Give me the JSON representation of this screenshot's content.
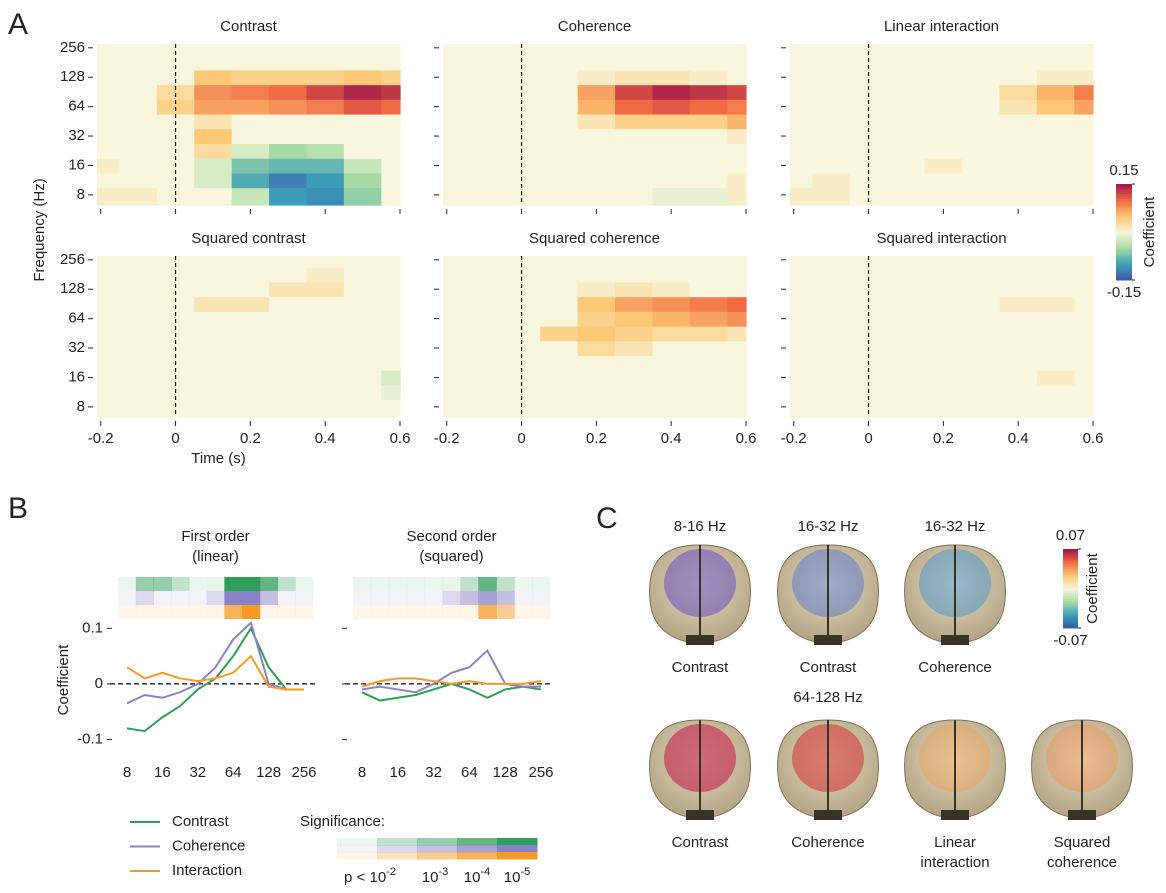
{
  "panel_letters": [
    "A",
    "B",
    "C"
  ],
  "chart_data": [
    {
      "type": "heatmap",
      "title": "Contrast",
      "x": [
        -0.2,
        -0.1,
        0,
        0.1,
        0.2,
        0.3,
        0.4,
        0.5,
        0.6
      ],
      "y": [
        8,
        11.3,
        16,
        22.6,
        32,
        45.3,
        64,
        90.5,
        128,
        181,
        256
      ],
      "xlim": [
        -0.21,
        0.6
      ],
      "ylim": [
        6.3,
        280
      ],
      "ylog": true,
      "xticks": [
        -0.2,
        0,
        0.2,
        0.4,
        0.6
      ],
      "yticks": [
        8,
        16,
        32,
        64,
        128,
        256
      ],
      "xtick_labels": false,
      "ytick_labels": true,
      "z": [
        [
          0.01,
          0.01,
          0,
          0,
          -0.03,
          -0.1,
          -0.11,
          -0.06,
          0
        ],
        [
          0,
          0,
          0,
          -0.02,
          -0.09,
          -0.12,
          -0.1,
          -0.05,
          0
        ],
        [
          0.01,
          0,
          0,
          -0.02,
          -0.07,
          -0.08,
          -0.08,
          -0.03,
          0
        ],
        [
          0,
          0,
          0,
          0.03,
          -0.02,
          -0.05,
          -0.04,
          0,
          0
        ],
        [
          0,
          0,
          0,
          0.05,
          0,
          0,
          0,
          0,
          0
        ],
        [
          0,
          0,
          0,
          0.02,
          0,
          0,
          0,
          0,
          0
        ],
        [
          0,
          0,
          0.04,
          0.07,
          0.07,
          0.08,
          0.09,
          0.11,
          0.1
        ],
        [
          0,
          0,
          0.03,
          0.08,
          0.09,
          0.1,
          0.12,
          0.14,
          0.13
        ],
        [
          0,
          0,
          0,
          0.05,
          0.04,
          0.04,
          0.04,
          0.05,
          0.04
        ],
        [
          0,
          0,
          0,
          0,
          0,
          0,
          0,
          0,
          0
        ],
        [
          0,
          0,
          0,
          0,
          0,
          0,
          0,
          0,
          0
        ]
      ]
    },
    {
      "type": "heatmap",
      "title": "Coherence",
      "x": [
        -0.2,
        -0.1,
        0,
        0.1,
        0.2,
        0.3,
        0.4,
        0.5,
        0.6
      ],
      "y": [
        8,
        11.3,
        16,
        22.6,
        32,
        45.3,
        64,
        90.5,
        128,
        181,
        256
      ],
      "xlim": [
        -0.21,
        0.6
      ],
      "ylim": [
        6.3,
        280
      ],
      "ylog": true,
      "xticks": [
        -0.2,
        0,
        0.2,
        0.4,
        0.6
      ],
      "yticks": [
        8,
        16,
        32,
        64,
        128,
        256
      ],
      "xtick_labels": false,
      "ytick_labels": false,
      "z": [
        [
          0,
          0,
          0,
          0,
          0,
          0,
          -0.01,
          -0.01,
          0.01
        ],
        [
          0,
          0,
          0,
          0,
          0,
          0,
          0,
          0,
          0.01
        ],
        [
          0,
          0,
          0,
          0,
          0,
          0,
          0,
          0,
          0
        ],
        [
          0,
          0,
          0,
          0,
          0,
          0,
          0,
          0,
          0
        ],
        [
          0,
          0,
          0,
          0,
          0,
          0,
          0,
          0,
          0.01
        ],
        [
          0,
          0,
          0,
          0,
          0.02,
          0.04,
          0.04,
          0.04,
          0.06
        ],
        [
          0,
          0,
          0,
          0,
          0.06,
          0.1,
          0.11,
          0.1,
          0.09
        ],
        [
          0,
          0,
          0,
          0,
          0.07,
          0.12,
          0.14,
          0.13,
          0.12
        ],
        [
          0,
          0,
          0,
          0,
          0.01,
          0.02,
          0.02,
          0.01,
          0
        ],
        [
          0,
          0,
          0,
          0,
          0,
          0,
          0,
          0,
          0
        ],
        [
          0,
          0,
          0,
          0,
          0,
          0,
          0,
          0,
          0
        ]
      ]
    },
    {
      "type": "heatmap",
      "title": "Linear interaction",
      "x": [
        -0.2,
        -0.1,
        0,
        0.1,
        0.2,
        0.3,
        0.4,
        0.5,
        0.6
      ],
      "y": [
        8,
        11.3,
        16,
        22.6,
        32,
        45.3,
        64,
        90.5,
        128,
        181,
        256
      ],
      "xlim": [
        -0.21,
        0.6
      ],
      "ylim": [
        6.3,
        280
      ],
      "ylog": true,
      "xticks": [
        -0.2,
        0,
        0.2,
        0.4,
        0.6
      ],
      "yticks": [
        8,
        16,
        32,
        64,
        128,
        256
      ],
      "xtick_labels": false,
      "ytick_labels": false,
      "z": [
        [
          0.01,
          0.01,
          0,
          0,
          0,
          0,
          0,
          0,
          0
        ],
        [
          0,
          0.01,
          0,
          0,
          0,
          0,
          0,
          0,
          0
        ],
        [
          0,
          0,
          0,
          0,
          0.01,
          0,
          0,
          0,
          0
        ],
        [
          0,
          0,
          0,
          0,
          0,
          0,
          0,
          0,
          0
        ],
        [
          0,
          0,
          0,
          0,
          0,
          0,
          0,
          0,
          0
        ],
        [
          0,
          0,
          0,
          0,
          0,
          0,
          0,
          0,
          0
        ],
        [
          0,
          0,
          0,
          0,
          0,
          0,
          0.02,
          0.05,
          0.07
        ],
        [
          0,
          0,
          0,
          0,
          0,
          0,
          0.03,
          0.06,
          0.09
        ],
        [
          0,
          0,
          0,
          0,
          0,
          0,
          0,
          0.01,
          0.01
        ],
        [
          0,
          0,
          0,
          0,
          0,
          0,
          0,
          0,
          0
        ],
        [
          0,
          0,
          0,
          0,
          0,
          0,
          0,
          0,
          0
        ]
      ]
    },
    {
      "type": "heatmap",
      "title": "Squared contrast",
      "xlabel": "Time (s)",
      "ylabel": "Frequency (Hz)",
      "x": [
        -0.2,
        -0.1,
        0,
        0.1,
        0.2,
        0.3,
        0.4,
        0.5,
        0.6
      ],
      "y": [
        8,
        11.3,
        16,
        22.6,
        32,
        45.3,
        64,
        90.5,
        128,
        181,
        256
      ],
      "xlim": [
        -0.21,
        0.6
      ],
      "ylim": [
        6.3,
        280
      ],
      "ylog": true,
      "xticks": [
        -0.2,
        0,
        0.2,
        0.4,
        0.6
      ],
      "yticks": [
        8,
        16,
        32,
        64,
        128,
        256
      ],
      "xtick_labels": true,
      "ytick_labels": true,
      "z": [
        [
          0,
          0,
          0,
          0,
          0,
          0,
          0,
          0,
          0
        ],
        [
          0,
          0,
          0,
          0,
          0,
          0,
          0,
          0,
          -0.01
        ],
        [
          0,
          0,
          0,
          0,
          0,
          0,
          0,
          0,
          -0.02
        ],
        [
          0,
          0,
          0,
          0,
          0,
          0,
          0,
          0,
          0
        ],
        [
          0,
          0,
          0,
          0,
          0,
          0,
          0,
          0,
          0
        ],
        [
          0,
          0,
          0,
          0,
          0,
          0,
          0,
          0,
          0
        ],
        [
          0,
          0,
          0,
          0,
          0,
          0,
          0,
          0,
          0
        ],
        [
          0,
          0,
          0,
          0.02,
          0.02,
          0,
          0,
          0,
          0
        ],
        [
          0,
          0,
          0,
          0,
          0,
          0.02,
          0.02,
          0,
          0
        ],
        [
          0,
          0,
          0,
          0,
          0,
          0,
          0.01,
          0,
          0
        ],
        [
          0,
          0,
          0,
          0,
          0,
          0,
          0,
          0,
          0
        ]
      ]
    },
    {
      "type": "heatmap",
      "title": "Squared coherence",
      "x": [
        -0.2,
        -0.1,
        0,
        0.1,
        0.2,
        0.3,
        0.4,
        0.5,
        0.6
      ],
      "y": [
        8,
        11.3,
        16,
        22.6,
        32,
        45.3,
        64,
        90.5,
        128,
        181,
        256
      ],
      "xlim": [
        -0.21,
        0.6
      ],
      "ylim": [
        6.3,
        280
      ],
      "ylog": true,
      "xticks": [
        -0.2,
        0,
        0.2,
        0.4,
        0.6
      ],
      "yticks": [
        8,
        16,
        32,
        64,
        128,
        256
      ],
      "xtick_labels": true,
      "ytick_labels": false,
      "z": [
        [
          0,
          0,
          0,
          0,
          0,
          0,
          0,
          0,
          0
        ],
        [
          0,
          0,
          0,
          0,
          0,
          0,
          0,
          0,
          0
        ],
        [
          0,
          0,
          0,
          0,
          0,
          0,
          0,
          0,
          0
        ],
        [
          0,
          0,
          0,
          0,
          0,
          0,
          0,
          0,
          0
        ],
        [
          0,
          0,
          0,
          0,
          0.03,
          0.02,
          0,
          0,
          0
        ],
        [
          0,
          0,
          0,
          0.04,
          0.05,
          0.04,
          0.03,
          0.03,
          0.02
        ],
        [
          0,
          0,
          0,
          0,
          0.04,
          0.05,
          0.06,
          0.07,
          0.08
        ],
        [
          0,
          0,
          0,
          0,
          0.05,
          0.07,
          0.08,
          0.09,
          0.1
        ],
        [
          0,
          0,
          0,
          0,
          0.01,
          0.02,
          0.01,
          0,
          0
        ],
        [
          0,
          0,
          0,
          0,
          0,
          0,
          0,
          0,
          0
        ],
        [
          0,
          0,
          0,
          0,
          0,
          0,
          0,
          0,
          0
        ]
      ]
    },
    {
      "type": "heatmap",
      "title": "Squared interaction",
      "x": [
        -0.2,
        -0.1,
        0,
        0.1,
        0.2,
        0.3,
        0.4,
        0.5,
        0.6
      ],
      "y": [
        8,
        11.3,
        16,
        22.6,
        32,
        45.3,
        64,
        90.5,
        128,
        181,
        256
      ],
      "xlim": [
        -0.21,
        0.6
      ],
      "ylim": [
        6.3,
        280
      ],
      "ylog": true,
      "xticks": [
        -0.2,
        0,
        0.2,
        0.4,
        0.6
      ],
      "yticks": [
        8,
        16,
        32,
        64,
        128,
        256
      ],
      "xtick_labels": true,
      "ytick_labels": false,
      "z": [
        [
          0,
          0,
          0,
          0,
          0,
          0,
          0,
          0,
          0
        ],
        [
          0,
          0,
          0,
          0,
          0,
          0,
          0,
          0,
          0
        ],
        [
          0,
          0,
          0,
          0,
          0,
          0,
          0,
          0.01,
          0
        ],
        [
          0,
          0,
          0,
          0,
          0,
          0,
          0,
          0,
          0
        ],
        [
          0,
          0,
          0,
          0,
          0,
          0,
          0,
          0,
          0
        ],
        [
          0,
          0,
          0,
          0,
          0,
          0,
          0,
          0,
          0
        ],
        [
          0,
          0,
          0,
          0,
          0,
          0,
          0,
          0,
          0
        ],
        [
          0,
          0,
          0,
          0,
          0,
          0,
          0.01,
          0.01,
          0
        ],
        [
          0,
          0,
          0,
          0,
          0,
          0,
          0,
          0,
          0
        ],
        [
          0,
          0,
          0,
          0,
          0,
          0,
          0,
          0,
          0
        ],
        [
          0,
          0,
          0,
          0,
          0,
          0,
          0,
          0,
          0
        ]
      ]
    },
    {
      "type": "line",
      "title": [
        "First order",
        "(linear)"
      ],
      "ylabel": "Coefficient",
      "x": [
        8,
        11.3,
        16,
        22.6,
        32,
        45.3,
        64,
        90.5,
        128,
        181,
        256
      ],
      "xlog": true,
      "xlim": [
        8,
        256
      ],
      "ylim": [
        -0.11,
        0.115
      ],
      "xticks": [
        8,
        16,
        32,
        64,
        128,
        256
      ],
      "yticks": [
        -0.1,
        0,
        0.1
      ],
      "ytick_labels": true,
      "series": [
        {
          "name": "Contrast",
          "color": "#2e9e5a",
          "values": [
            -0.08,
            -0.085,
            -0.06,
            -0.04,
            -0.01,
            0.01,
            0.05,
            0.1,
            0.03,
            -0.01,
            -0.01
          ],
          "significance": [
            0,
            2,
            2,
            1,
            0,
            0,
            4,
            4,
            3,
            1,
            0
          ]
        },
        {
          "name": "Coherence",
          "color": "#8a82c6",
          "values": [
            -0.035,
            -0.02,
            -0.025,
            -0.015,
            0,
            0.03,
            0.08,
            0.11,
            0,
            -0.01,
            -0.01
          ],
          "significance": [
            0,
            1,
            0,
            0,
            0,
            1,
            4,
            4,
            2,
            0,
            0
          ]
        },
        {
          "name": "Interaction",
          "color": "#f59a23",
          "values": [
            0.03,
            0.01,
            0.02,
            0.01,
            0.005,
            0.01,
            0.02,
            0.05,
            -0.005,
            -0.01,
            -0.01
          ],
          "significance": [
            0,
            0,
            0,
            0,
            0,
            0,
            3,
            4,
            0,
            0,
            0
          ]
        }
      ]
    },
    {
      "type": "line",
      "title": [
        "Second order",
        "(squared)"
      ],
      "x": [
        8,
        11.3,
        16,
        22.6,
        32,
        45.3,
        64,
        90.5,
        128,
        181,
        256
      ],
      "xlog": true,
      "xlim": [
        8,
        256
      ],
      "ylim": [
        -0.11,
        0.115
      ],
      "xticks": [
        8,
        16,
        32,
        64,
        128,
        256
      ],
      "yticks": [
        -0.1,
        0,
        0.1
      ],
      "ytick_labels": false,
      "series": [
        {
          "color": "#2e9e5a",
          "values": [
            -0.015,
            -0.03,
            -0.025,
            -0.02,
            -0.01,
            0,
            -0.01,
            -0.025,
            -0.01,
            -0.005,
            -0.01
          ],
          "significance": [
            0,
            0,
            0,
            0,
            0,
            0,
            1,
            3,
            1,
            0,
            0
          ]
        },
        {
          "color": "#8a82c6",
          "values": [
            -0.01,
            -0.005,
            -0.01,
            -0.015,
            0,
            0.02,
            0.03,
            0.06,
            0,
            -0.005,
            -0.005
          ],
          "significance": [
            0,
            0,
            0,
            0,
            0,
            1,
            2,
            3,
            2,
            0,
            0
          ]
        },
        {
          "color": "#f59a23",
          "values": [
            -0.005,
            0.005,
            0.01,
            0.01,
            0.005,
            0,
            0.005,
            0,
            0,
            0,
            0.005
          ],
          "significance": [
            0,
            0,
            0,
            0,
            0,
            0,
            0,
            3,
            2,
            0,
            0
          ]
        }
      ]
    },
    {
      "type": "colorbar",
      "label": "Coefficient",
      "clim": [
        -0.15,
        0.15
      ],
      "ticks": [
        -0.15,
        0.15
      ],
      "colormap": [
        "#3b57a6",
        "#3c9db8",
        "#a6dba3",
        "#f8f6dc",
        "#fdc875",
        "#f06a43",
        "#a0164a"
      ]
    }
  ],
  "significance_legend": {
    "title": "Significance:",
    "labels": [
      {
        "base": "p < 10",
        "exp": "-2"
      },
      {
        "base": "10",
        "exp": "-3"
      },
      {
        "base": "10",
        "exp": "-4"
      },
      {
        "base": "10",
        "exp": "-5"
      }
    ]
  },
  "brain_maps": {
    "row1": [
      {
        "band": "8-16 Hz",
        "caption": [
          "Contrast"
        ]
      },
      {
        "band": "16-32 Hz",
        "caption": [
          "Contrast"
        ]
      },
      {
        "band": "16-32 Hz",
        "caption": [
          "Coherence"
        ]
      }
    ],
    "row2_band": "64-128 Hz",
    "row2": [
      {
        "caption": [
          "Contrast"
        ]
      },
      {
        "caption": [
          "Coherence"
        ]
      },
      {
        "caption": [
          "Linear",
          "interaction"
        ]
      },
      {
        "caption": [
          "Squared",
          "coherence"
        ]
      }
    ],
    "colorbar": {
      "label": "Coefficient",
      "clim": [
        -0.07,
        0.07
      ],
      "ticks": [
        -0.07,
        0.07
      ]
    }
  }
}
